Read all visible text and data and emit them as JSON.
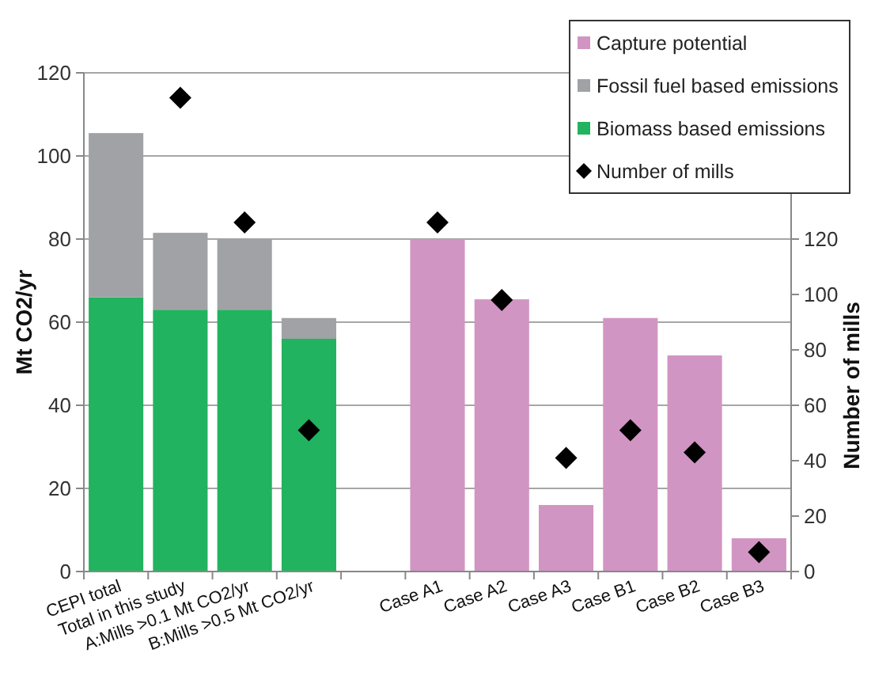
{
  "chart_data": {
    "type": "bar",
    "stacked": true,
    "ylabel": "Mt CO2/yr",
    "y2label": "Number of mills",
    "categories": [
      "CEPI total",
      "Total in  this study",
      "A:Mills >0.1 Mt CO2/yr",
      "B:Mills  >0.5 Mt CO2/yr",
      null,
      "Case A1",
      "Case A2",
      "Case A3",
      "Case B1",
      "Case B2",
      "Case B3"
    ],
    "series": [
      {
        "name": "Biomass based emissions",
        "color": "#21b35f",
        "values": [
          66,
          63,
          63,
          56,
          null,
          null,
          null,
          null,
          null,
          null,
          null
        ]
      },
      {
        "name": "Fossil fuel based emissions",
        "color": "#a0a2a5",
        "values": [
          39.5,
          18.5,
          17,
          5,
          null,
          null,
          null,
          null,
          null,
          null,
          null
        ]
      },
      {
        "name": "Capture potential",
        "color": "#d195c3",
        "values": [
          null,
          null,
          null,
          null,
          null,
          80,
          65.5,
          16,
          61,
          52,
          8
        ]
      },
      {
        "name": "Number of mills",
        "type": "scatter",
        "axis": "y2",
        "marker": "diamond",
        "color": "#000000",
        "values": [
          null,
          171,
          126,
          51,
          null,
          126,
          98,
          41,
          51,
          43,
          7
        ]
      }
    ],
    "ylim": [
      0,
      120
    ],
    "yticks": [
      0,
      20,
      40,
      60,
      80,
      100,
      120
    ],
    "y2lim": [
      0,
      180
    ],
    "y2ticks": [
      0,
      20,
      40,
      60,
      80,
      100,
      120
    ],
    "grid": "y",
    "legend": "top right"
  }
}
